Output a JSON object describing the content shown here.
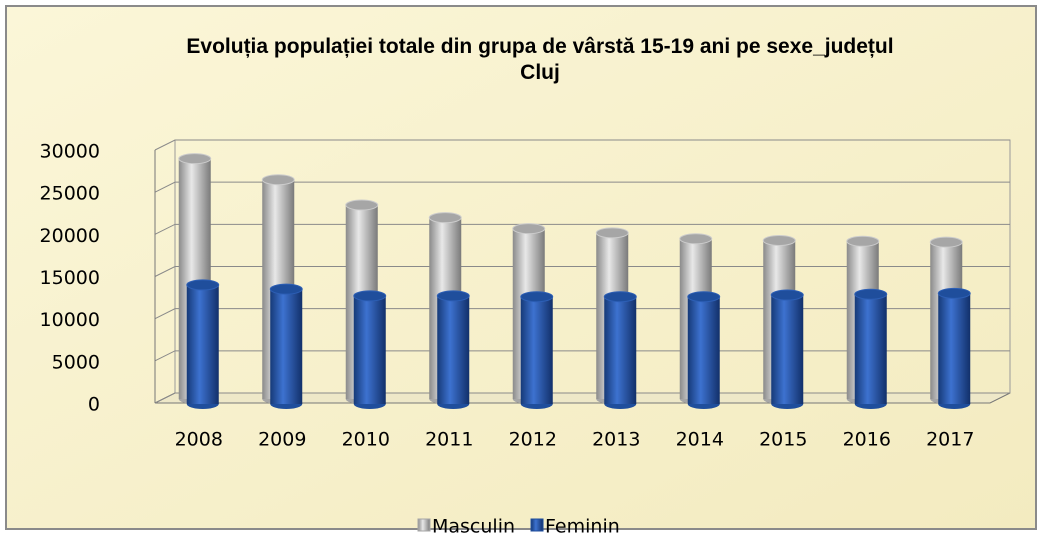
{
  "chart_data": {
    "type": "bar3d",
    "title": "Evoluția populației totale din grupa de vârstă 15-19 ani pe sexe_județul Cluj",
    "categories": [
      "2008",
      "2009",
      "2010",
      "2011",
      "2012",
      "2013",
      "2014",
      "2015",
      "2016",
      "2017"
    ],
    "series": [
      {
        "name": "Masculin",
        "color": "#a6a6a6",
        "values": [
          28500,
          26000,
          23000,
          21500,
          20200,
          19700,
          19000,
          18800,
          18700,
          18600
        ]
      },
      {
        "name": "Feminin",
        "color": "#1f4e9c",
        "values": [
          14000,
          13500,
          12700,
          12700,
          12600,
          12600,
          12600,
          12800,
          12900,
          13000
        ]
      }
    ],
    "ylim": [
      0,
      30000
    ],
    "yticks": [
      0,
      5000,
      10000,
      15000,
      20000,
      25000,
      30000
    ],
    "grid": true,
    "legend": "bottom"
  }
}
